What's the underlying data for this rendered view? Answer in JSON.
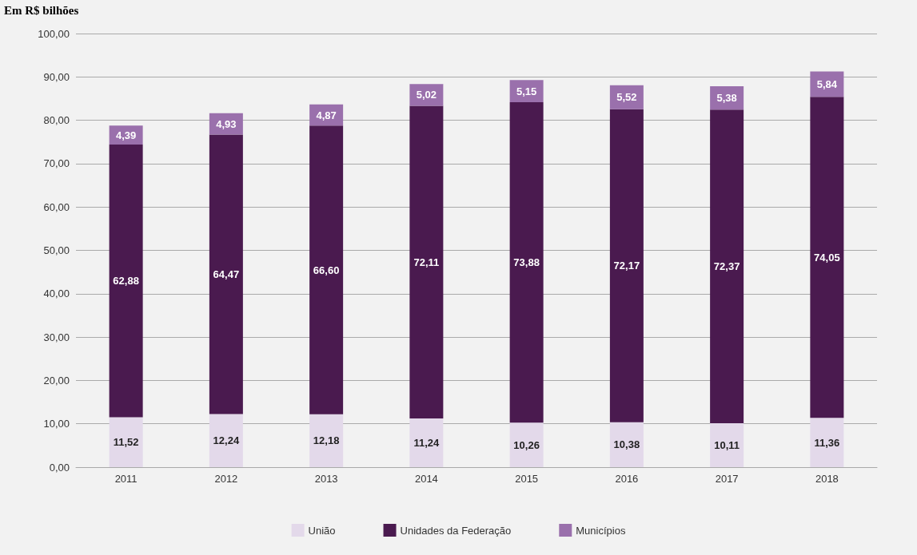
{
  "chart_data": {
    "type": "bar",
    "stacked": true,
    "title": "Em R$ bilhões",
    "categories": [
      "2011",
      "2012",
      "2013",
      "2014",
      "2015",
      "2016",
      "2017",
      "2018"
    ],
    "series": [
      {
        "name": "União",
        "color": "#e3d9ea",
        "values": [
          11.52,
          12.24,
          12.18,
          11.24,
          10.26,
          10.38,
          10.11,
          11.36
        ],
        "value_labels": [
          "11,52",
          "12,24",
          "12,18",
          "11,24",
          "10,26",
          "10,38",
          "10,11",
          "11,36"
        ]
      },
      {
        "name": "Unidades da Federação",
        "color": "#4a1a4f",
        "values": [
          62.88,
          64.47,
          66.6,
          72.11,
          73.88,
          72.17,
          72.37,
          74.05
        ],
        "value_labels": [
          "62,88",
          "64,47",
          "66,60",
          "72,11",
          "73,88",
          "72,17",
          "72,37",
          "74,05"
        ]
      },
      {
        "name": "Municípios",
        "color": "#9a70ac",
        "values": [
          4.39,
          4.93,
          4.87,
          5.02,
          5.15,
          5.52,
          5.38,
          5.84
        ],
        "value_labels": [
          "4,39",
          "4,93",
          "4,87",
          "5,02",
          "5,15",
          "5,52",
          "5,38",
          "5,84"
        ]
      }
    ],
    "ylim": [
      0,
      100
    ],
    "yticks": [
      {
        "value": 0,
        "label": "0,00"
      },
      {
        "value": 10,
        "label": "10,00"
      },
      {
        "value": 20,
        "label": "20,00"
      },
      {
        "value": 30,
        "label": "30,00"
      },
      {
        "value": 40,
        "label": "40,00"
      },
      {
        "value": 50,
        "label": "50,00"
      },
      {
        "value": 60,
        "label": "60,00"
      },
      {
        "value": 70,
        "label": "70,00"
      },
      {
        "value": 80,
        "label": "80,00"
      },
      {
        "value": 90,
        "label": "90,00"
      },
      {
        "value": 100,
        "label": "100,00"
      }
    ],
    "grid": "y",
    "legend": "bottom"
  }
}
